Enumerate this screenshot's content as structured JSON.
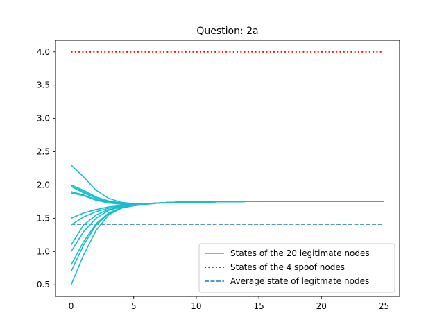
{
  "chart_data": {
    "type": "line",
    "title": "Question: 2a",
    "xlabel": "",
    "ylabel": "",
    "xlim": [
      -1.25,
      26.25
    ],
    "ylim": [
      0.325,
      4.175
    ],
    "xticks": [
      0,
      5,
      10,
      15,
      20,
      25
    ],
    "yticks": [
      0.5,
      1.0,
      1.5,
      2.0,
      2.5,
      3.0,
      3.5,
      4.0
    ],
    "ytick_labels": [
      "0.5",
      "1.0",
      "1.5",
      "2.0",
      "2.5",
      "3.0",
      "3.5",
      "4.0"
    ],
    "grid": false,
    "legend_position": "lower-right",
    "colors": {
      "legit": "#17becf",
      "spoof": "#ff0000",
      "average": "#1f77b4"
    },
    "x": [
      0,
      1,
      2,
      3,
      4,
      5,
      6,
      7,
      8,
      9,
      10,
      11,
      12,
      13,
      14,
      15,
      16,
      17,
      18,
      19,
      20,
      21,
      22,
      23,
      24,
      25
    ],
    "legit_series_initial": [
      2.3,
      2.0,
      2.0,
      1.98,
      1.9,
      1.88,
      1.5,
      1.4,
      1.1,
      1.0,
      0.8,
      0.7,
      0.5
    ],
    "legit_series": [
      {
        "values": [
          2.3,
          2.12,
          1.92,
          1.8,
          1.74,
          1.72,
          1.72,
          1.73,
          1.74,
          1.745,
          1.745,
          1.745,
          1.748,
          1.75,
          1.752,
          1.755,
          1.755,
          1.755,
          1.755,
          1.755,
          1.755,
          1.755,
          1.755,
          1.755,
          1.755,
          1.755
        ]
      },
      {
        "values": [
          2.0,
          1.92,
          1.82,
          1.76,
          1.73,
          1.715,
          1.72,
          1.73,
          1.74,
          1.745,
          1.745,
          1.745,
          1.748,
          1.75,
          1.752,
          1.755,
          1.755,
          1.755,
          1.755,
          1.755,
          1.755,
          1.755,
          1.755,
          1.755,
          1.755,
          1.755
        ]
      },
      {
        "values": [
          2.0,
          1.9,
          1.8,
          1.75,
          1.72,
          1.71,
          1.72,
          1.73,
          1.74,
          1.745,
          1.745,
          1.745,
          1.748,
          1.75,
          1.752,
          1.755,
          1.755,
          1.755,
          1.755,
          1.755,
          1.755,
          1.755,
          1.755,
          1.755,
          1.755,
          1.755
        ]
      },
      {
        "values": [
          1.98,
          1.88,
          1.8,
          1.75,
          1.72,
          1.71,
          1.72,
          1.73,
          1.74,
          1.745,
          1.745,
          1.745,
          1.748,
          1.75,
          1.752,
          1.755,
          1.755,
          1.755,
          1.755,
          1.755,
          1.755,
          1.755,
          1.755,
          1.755,
          1.755,
          1.755
        ]
      },
      {
        "values": [
          1.9,
          1.85,
          1.78,
          1.74,
          1.72,
          1.71,
          1.72,
          1.73,
          1.74,
          1.745,
          1.745,
          1.745,
          1.748,
          1.75,
          1.752,
          1.755,
          1.755,
          1.755,
          1.755,
          1.755,
          1.755,
          1.755,
          1.755,
          1.755,
          1.755,
          1.755
        ]
      },
      {
        "values": [
          1.88,
          1.84,
          1.77,
          1.73,
          1.71,
          1.705,
          1.715,
          1.73,
          1.74,
          1.745,
          1.745,
          1.745,
          1.748,
          1.75,
          1.752,
          1.755,
          1.755,
          1.755,
          1.755,
          1.755,
          1.755,
          1.755,
          1.755,
          1.755,
          1.755,
          1.755
        ]
      },
      {
        "values": [
          1.5,
          1.58,
          1.63,
          1.67,
          1.69,
          1.7,
          1.715,
          1.73,
          1.74,
          1.745,
          1.745,
          1.745,
          1.748,
          1.75,
          1.752,
          1.755,
          1.755,
          1.755,
          1.755,
          1.755,
          1.755,
          1.755,
          1.755,
          1.755,
          1.755,
          1.755
        ]
      },
      {
        "values": [
          1.4,
          1.52,
          1.6,
          1.65,
          1.68,
          1.7,
          1.715,
          1.73,
          1.74,
          1.745,
          1.745,
          1.745,
          1.748,
          1.75,
          1.752,
          1.755,
          1.755,
          1.755,
          1.755,
          1.755,
          1.755,
          1.755,
          1.755,
          1.755,
          1.755,
          1.755
        ]
      },
      {
        "values": [
          1.1,
          1.4,
          1.55,
          1.63,
          1.67,
          1.695,
          1.712,
          1.73,
          1.74,
          1.745,
          1.745,
          1.745,
          1.748,
          1.75,
          1.752,
          1.755,
          1.755,
          1.755,
          1.755,
          1.755,
          1.755,
          1.755,
          1.755,
          1.755,
          1.755,
          1.755
        ]
      },
      {
        "values": [
          1.0,
          1.3,
          1.5,
          1.62,
          1.67,
          1.695,
          1.712,
          1.73,
          1.74,
          1.745,
          1.745,
          1.745,
          1.748,
          1.75,
          1.752,
          1.755,
          1.755,
          1.755,
          1.755,
          1.755,
          1.755,
          1.755,
          1.755,
          1.755,
          1.755,
          1.755
        ]
      },
      {
        "values": [
          0.8,
          1.15,
          1.42,
          1.58,
          1.66,
          1.69,
          1.71,
          1.73,
          1.74,
          1.745,
          1.745,
          1.745,
          1.748,
          1.75,
          1.752,
          1.755,
          1.755,
          1.755,
          1.755,
          1.755,
          1.755,
          1.755,
          1.755,
          1.755,
          1.755,
          1.755
        ]
      },
      {
        "values": [
          0.7,
          1.1,
          1.4,
          1.57,
          1.65,
          1.69,
          1.71,
          1.73,
          1.74,
          1.745,
          1.745,
          1.745,
          1.748,
          1.75,
          1.752,
          1.755,
          1.755,
          1.755,
          1.755,
          1.755,
          1.755,
          1.755,
          1.755,
          1.755,
          1.755,
          1.755
        ]
      },
      {
        "values": [
          0.5,
          0.95,
          1.32,
          1.55,
          1.65,
          1.69,
          1.71,
          1.73,
          1.74,
          1.745,
          1.745,
          1.745,
          1.748,
          1.75,
          1.752,
          1.755,
          1.755,
          1.755,
          1.755,
          1.755,
          1.755,
          1.755,
          1.755,
          1.755,
          1.755,
          1.755
        ]
      }
    ],
    "spoof_value": 4.0,
    "average_value": 1.41,
    "legend": [
      {
        "key": "legit",
        "label": "States of the 20 legitimate nodes",
        "style": "solid"
      },
      {
        "key": "spoof",
        "label": "States of the 4 spoof nodes",
        "style": "dotted"
      },
      {
        "key": "average",
        "label": "Average state of legitmate nodes",
        "style": "dashed"
      }
    ]
  }
}
